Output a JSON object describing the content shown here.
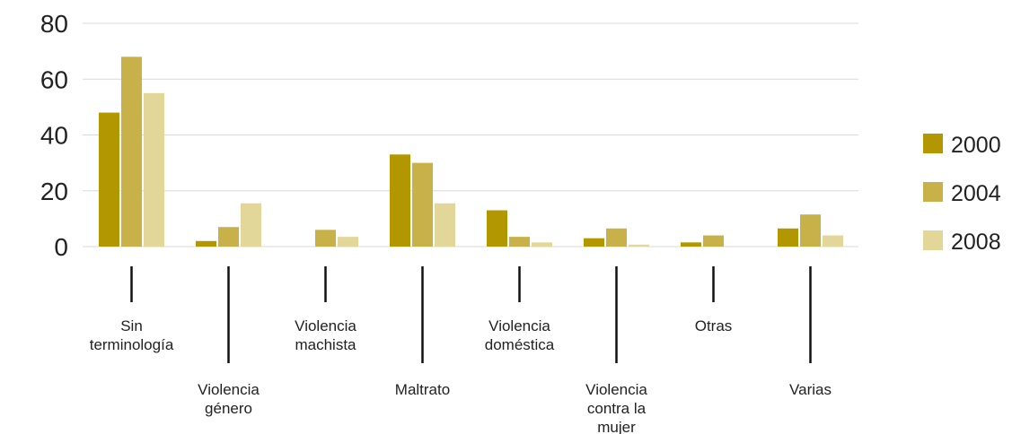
{
  "chart_data": {
    "type": "bar",
    "title": "",
    "xlabel": "",
    "ylabel": "",
    "ylim": [
      0,
      80
    ],
    "yticks": [
      0,
      20,
      40,
      60,
      80
    ],
    "grid": true,
    "legend_position": "right",
    "categories": [
      "Sin terminología",
      "Violencia género",
      "Violencia machista",
      "Maltrato",
      "Violencia doméstica",
      "Violencia contra la mujer",
      "Otras",
      "Varias"
    ],
    "category_label_lines": [
      [
        "Sin",
        "terminología"
      ],
      [
        "Violencia",
        "género"
      ],
      [
        "Violencia",
        "machista"
      ],
      [
        "Maltrato"
      ],
      [
        "Violencia",
        "doméstica"
      ],
      [
        "Violencia",
        "contra la",
        "mujer"
      ],
      [
        "Otras"
      ],
      [
        "Varias"
      ]
    ],
    "series": [
      {
        "name": "2000",
        "color": "#b39700",
        "values": [
          48,
          2,
          0,
          33,
          13,
          3,
          1.5,
          6.5
        ]
      },
      {
        "name": "2004",
        "color": "#c9b14a",
        "values": [
          68,
          7,
          6,
          30,
          3.5,
          6.5,
          4,
          11.5
        ]
      },
      {
        "name": "2008",
        "color": "#e2d699",
        "values": [
          55,
          15.5,
          3.5,
          15.5,
          1.5,
          0.7,
          0,
          4
        ]
      }
    ]
  }
}
